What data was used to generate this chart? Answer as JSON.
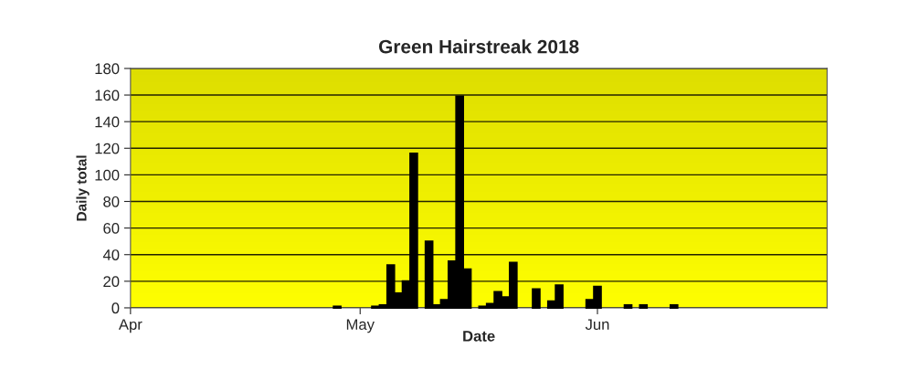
{
  "chart_data": {
    "type": "bar",
    "title": "Green Hairstreak 2018",
    "xlabel": "Date",
    "ylabel": "Daily total",
    "x": [
      "2018-04-28",
      "2018-05-03",
      "2018-05-04",
      "2018-05-05",
      "2018-05-06",
      "2018-05-07",
      "2018-05-08",
      "2018-05-10",
      "2018-05-11",
      "2018-05-12",
      "2018-05-13",
      "2018-05-14",
      "2018-05-15",
      "2018-05-17",
      "2018-05-18",
      "2018-05-19",
      "2018-05-20",
      "2018-05-21",
      "2018-05-24",
      "2018-05-26",
      "2018-05-27",
      "2018-05-31",
      "2018-06-01",
      "2018-06-05",
      "2018-06-07",
      "2018-06-11"
    ],
    "series": [
      {
        "color": "#000000",
        "values": [
          1,
          1,
          2,
          32,
          11,
          20,
          116,
          50,
          2,
          6,
          35,
          159,
          29,
          1,
          3,
          12,
          8,
          34,
          14,
          5,
          17,
          6,
          16,
          2,
          2,
          2
        ]
      }
    ],
    "xlim": [
      "2018-04-01",
      "2018-07-01"
    ],
    "xticks": [
      {
        "value": "2018-04-01",
        "label": "Apr"
      },
      {
        "value": "2018-05-01",
        "label": "May"
      },
      {
        "value": "2018-06-01",
        "label": "Jun"
      }
    ],
    "ylim": [
      0,
      180
    ],
    "yticks": [
      0,
      20,
      40,
      60,
      80,
      100,
      120,
      140,
      160,
      180
    ],
    "grid": "y"
  }
}
